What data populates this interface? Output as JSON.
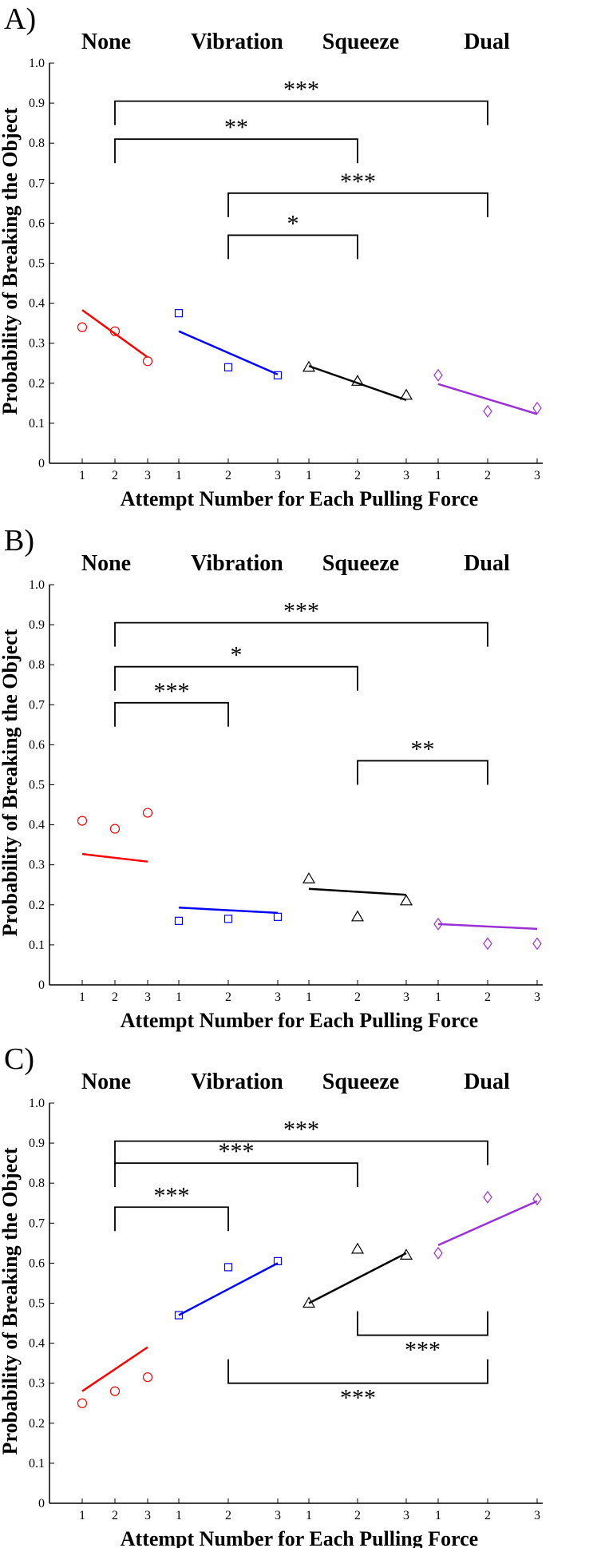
{
  "chart_data": [
    {
      "type": "scatter",
      "panel_label": "A)",
      "ylabel": "Probability of Breaking the Object",
      "xlabel": "Attempt Number for Each Pulling Force",
      "ylim": [
        0,
        1.0
      ],
      "yticks": [
        "0",
        "0.1",
        "0.2",
        "0.3",
        "0.4",
        "0.5",
        "0.6",
        "0.7",
        "0.8",
        "0.9",
        "1.0"
      ],
      "x_tick_labels": [
        "1",
        "2",
        "3"
      ],
      "groups": [
        {
          "label": "None",
          "color": "#ff0000",
          "marker": "circle",
          "points": [
            0.34,
            0.33,
            0.255
          ],
          "fit": [
            0.383,
            0.265
          ]
        },
        {
          "label": "Vibration",
          "color": "#0000ff",
          "marker": "square",
          "points": [
            0.375,
            0.24,
            0.22
          ],
          "fit": [
            0.33,
            0.222
          ]
        },
        {
          "label": "Squeeze",
          "color": "#000000",
          "marker": "triangle",
          "points": [
            0.24,
            0.205,
            0.17
          ],
          "fit": [
            0.243,
            0.158
          ]
        },
        {
          "label": "Dual",
          "color": "#9b30d9",
          "marker": "diamond",
          "points": [
            0.22,
            0.13,
            0.138
          ],
          "fit": [
            0.198,
            0.123
          ]
        }
      ],
      "brackets": [
        {
          "from": "None",
          "to": "Dual",
          "y": 0.905,
          "side": "above",
          "label": "***"
        },
        {
          "from": "None",
          "to": "Squeeze",
          "y": 0.81,
          "side": "above",
          "label": "**"
        },
        {
          "from": "Vibration",
          "to": "Dual",
          "y": 0.675,
          "side": "above",
          "label": "***"
        },
        {
          "from": "Vibration",
          "to": "Squeeze",
          "y": 0.57,
          "side": "above",
          "label": "*"
        }
      ]
    },
    {
      "type": "scatter",
      "panel_label": "B)",
      "ylabel": "Probability of Breaking the Object",
      "xlabel": "Attempt Number for Each Pulling Force",
      "ylim": [
        0,
        1.0
      ],
      "yticks": [
        "0",
        "0.1",
        "0.2",
        "0.3",
        "0.4",
        "0.5",
        "0.6",
        "0.7",
        "0.8",
        "0.9",
        "1.0"
      ],
      "x_tick_labels": [
        "1",
        "2",
        "3"
      ],
      "groups": [
        {
          "label": "None",
          "color": "#ff0000",
          "marker": "circle",
          "points": [
            0.41,
            0.39,
            0.43
          ],
          "fit": [
            0.327,
            0.308
          ]
        },
        {
          "label": "Vibration",
          "color": "#0000ff",
          "marker": "square",
          "points": [
            0.16,
            0.165,
            0.17
          ],
          "fit": [
            0.193,
            0.18
          ]
        },
        {
          "label": "Squeeze",
          "color": "#000000",
          "marker": "triangle",
          "points": [
            0.265,
            0.17,
            0.21
          ],
          "fit": [
            0.24,
            0.225
          ]
        },
        {
          "label": "Dual",
          "color": "#9b30d9",
          "marker": "diamond",
          "points": [
            0.152,
            0.103,
            0.103
          ],
          "fit": [
            0.152,
            0.14
          ]
        }
      ],
      "brackets": [
        {
          "from": "None",
          "to": "Dual",
          "y": 0.905,
          "side": "above",
          "label": "***"
        },
        {
          "from": "None",
          "to": "Squeeze",
          "y": 0.795,
          "side": "above",
          "label": "*"
        },
        {
          "from": "None",
          "to": "Vibration",
          "y": 0.705,
          "side": "above",
          "label": "***"
        },
        {
          "from": "Squeeze",
          "to": "Dual",
          "y": 0.56,
          "side": "above",
          "label": "**"
        }
      ]
    },
    {
      "type": "scatter",
      "panel_label": "C)",
      "ylabel": "Probability of Breaking the Object",
      "xlabel": "Attempt Number for Each Pulling Force",
      "ylim": [
        0,
        1.0
      ],
      "yticks": [
        "0",
        "0.1",
        "0.2",
        "0.3",
        "0.4",
        "0.5",
        "0.6",
        "0.7",
        "0.8",
        "0.9",
        "1.0"
      ],
      "x_tick_labels": [
        "1",
        "2",
        "3"
      ],
      "groups": [
        {
          "label": "None",
          "color": "#ff0000",
          "marker": "circle",
          "points": [
            0.25,
            0.28,
            0.315
          ],
          "fit": [
            0.28,
            0.39
          ]
        },
        {
          "label": "Vibration",
          "color": "#0000ff",
          "marker": "square",
          "points": [
            0.47,
            0.59,
            0.605
          ],
          "fit": [
            0.47,
            0.6
          ]
        },
        {
          "label": "Squeeze",
          "color": "#000000",
          "marker": "triangle",
          "points": [
            0.5,
            0.635,
            0.62
          ],
          "fit": [
            0.5,
            0.625
          ]
        },
        {
          "label": "Dual",
          "color": "#9b30d9",
          "marker": "diamond",
          "points": [
            0.625,
            0.765,
            0.76
          ],
          "fit": [
            0.645,
            0.755
          ]
        }
      ],
      "brackets": [
        {
          "from": "None",
          "to": "Dual",
          "y": 0.905,
          "side": "above",
          "label": "***"
        },
        {
          "from": "None",
          "to": "Squeeze",
          "y": 0.85,
          "side": "above",
          "label": "***"
        },
        {
          "from": "None",
          "to": "Vibration",
          "y": 0.74,
          "side": "above",
          "label": "***"
        },
        {
          "from": "Squeeze",
          "to": "Dual",
          "y": 0.42,
          "side": "below",
          "label": "***"
        },
        {
          "from": "Vibration",
          "to": "Dual",
          "y": 0.3,
          "side": "below",
          "label": "***"
        }
      ]
    }
  ]
}
